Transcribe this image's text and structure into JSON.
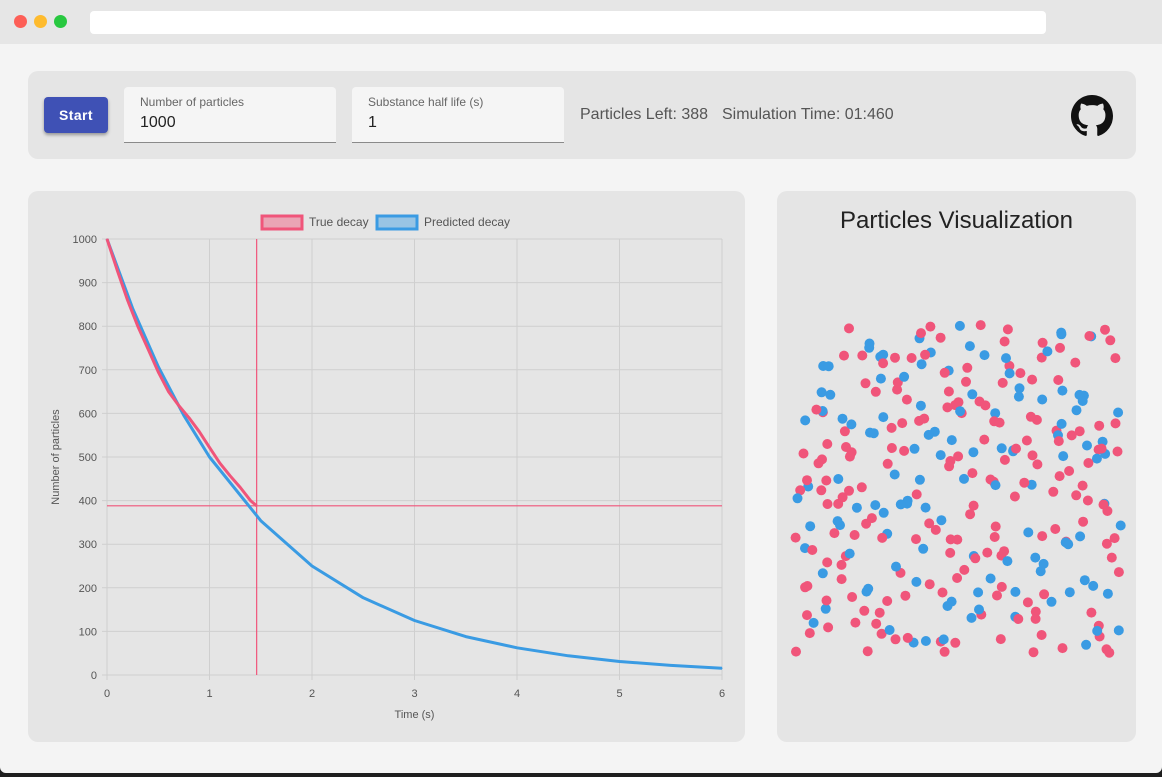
{
  "toolbar": {
    "start_label": "Start",
    "particles_field": {
      "label": "Number of particles",
      "value": "1000"
    },
    "halflife_field": {
      "label": "Substance half life (s)",
      "value": "1"
    },
    "particles_left": "Particles Left: 388",
    "simulation_time": "Simulation Time: 01:460",
    "github_icon": "github-icon"
  },
  "visualization": {
    "title": "Particles Visualization",
    "particle_colors": {
      "remaining": "#f0557a",
      "decayed": "#3a9be3"
    }
  },
  "colors": {
    "true_decay": "#f0557a",
    "predicted_decay": "#3a9be3",
    "accent": "#3f51b5"
  },
  "chart_data": {
    "type": "line",
    "xlabel": "Time (s)",
    "ylabel": "Number of particles",
    "xlim": [
      0,
      6
    ],
    "ylim": [
      0,
      1000
    ],
    "x_ticks": [
      "0",
      "1",
      "2",
      "3",
      "4",
      "5",
      "6"
    ],
    "y_ticks": [
      "0",
      "100",
      "200",
      "300",
      "400",
      "500",
      "600",
      "700",
      "800",
      "900",
      "1000"
    ],
    "grid": true,
    "legend_position": "top",
    "crosshair": {
      "x": 1.46,
      "y": 388
    },
    "series": [
      {
        "name": "True decay",
        "color": "#f0557a",
        "points": [
          [
            0,
            1000
          ],
          [
            0.1,
            928
          ],
          [
            0.2,
            860
          ],
          [
            0.3,
            800
          ],
          [
            0.4,
            748
          ],
          [
            0.5,
            695
          ],
          [
            0.6,
            650
          ],
          [
            0.7,
            618
          ],
          [
            0.8,
            590
          ],
          [
            0.9,
            558
          ],
          [
            1.0,
            522
          ],
          [
            1.1,
            486
          ],
          [
            1.2,
            457
          ],
          [
            1.3,
            430
          ],
          [
            1.4,
            400
          ],
          [
            1.46,
            388
          ]
        ]
      },
      {
        "name": "Predicted decay",
        "color": "#3a9be3",
        "points": [
          [
            0,
            1000
          ],
          [
            0.25,
            841
          ],
          [
            0.5,
            707
          ],
          [
            0.75,
            595
          ],
          [
            1,
            500
          ],
          [
            1.5,
            354
          ],
          [
            2,
            250
          ],
          [
            2.5,
            177
          ],
          [
            3,
            125
          ],
          [
            3.5,
            88
          ],
          [
            4,
            62.5
          ],
          [
            4.5,
            44
          ],
          [
            5,
            31
          ],
          [
            5.5,
            22
          ],
          [
            6,
            15.6
          ]
        ]
      }
    ]
  }
}
